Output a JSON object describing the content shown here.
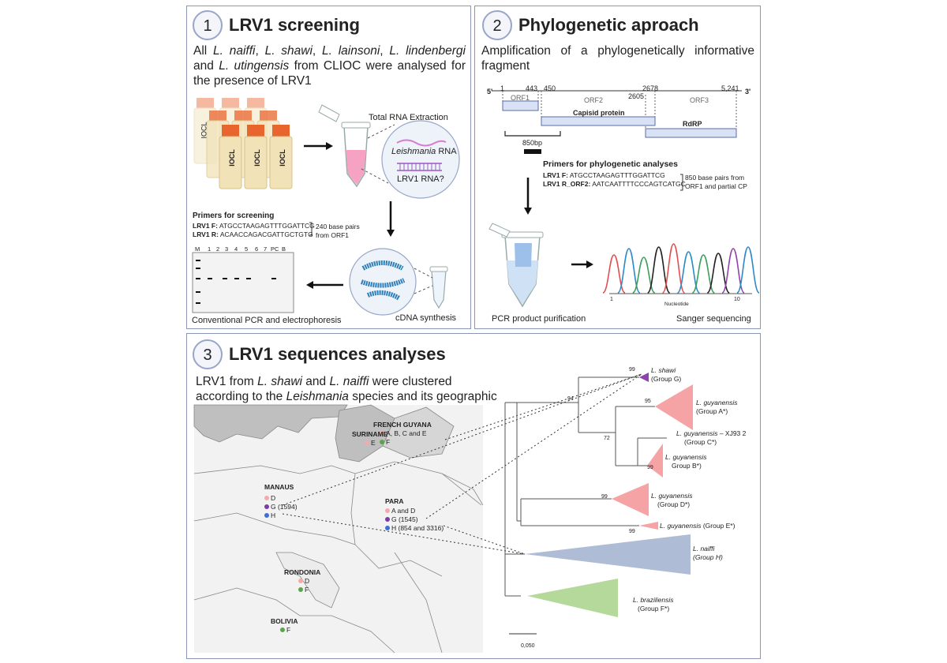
{
  "panel1": {
    "number": "1",
    "title": "LRV1 screening",
    "desc_parts": [
      "All ",
      "L. naiffi",
      ", ",
      "L. shawi",
      ", ",
      "L. lainsoni",
      ", ",
      "L. lindenbergi",
      " and ",
      "L. utingensis",
      " from CLIOC were analysed for the presence of LRV1"
    ],
    "tube_label": "IOCL",
    "rna_extraction": "Total RNA Extraction",
    "leish_rna_italic": "Leishmania",
    "leish_rna_rest": " RNA",
    "lrv1_rna": "LRV1 RNA?",
    "primers_title": "Primers for screening",
    "primer_f_label": "LRV1 F:",
    "primer_f_seq": "ATGCCTAAGAGTTTGGATTCG",
    "primer_r_label": "LRV1 R:",
    "primer_r_seq": "ACAACCAGACGATTGCTGTG",
    "primer_note_1": "240 base pairs",
    "primer_note_2": "from ORF1",
    "gel_lanes": [
      "M",
      "1",
      "2",
      "3",
      "4",
      "5",
      "6",
      "7",
      "PC",
      "B"
    ],
    "gel_label": "Conventional PCR and electrophoresis",
    "cdna_label": "cDNA synthesis"
  },
  "panel2": {
    "number": "2",
    "title": "Phylogenetic aproach",
    "desc": "Amplification of a phylogenetically informative fragment",
    "genome": {
      "five_prime": "5'",
      "three_prime": "3'",
      "positions": [
        "1",
        "443",
        "450",
        "2605",
        "2678",
        "5,241"
      ],
      "orf1": "ORF1",
      "orf2": "ORF2",
      "orf3": "ORF3",
      "capsid": "Capisid protein",
      "rdrp": "RdRP",
      "amplicon": "850bp"
    },
    "primers_title": "Primers for phylogenetic analyses",
    "primer_f_label": "LRV1 F:",
    "primer_f_seq": "ATGCCTAAGAGTTTGGATTCG",
    "primer_r_label": "LRV1 R_ORF2:",
    "primer_r_seq": "AATCAATTTTCCCAGTCATGC",
    "primer_note_1": "850 base pairs from",
    "primer_note_2": "ORF1 and partial CP",
    "purif_label": "PCR product purification",
    "seq_label": "Sanger sequencing",
    "chrom_axis_label": "Nucleotide",
    "chrom_tick_start": "1",
    "chrom_tick_end": "10",
    "peak_colors": [
      "#e05050",
      "#2c8ac9",
      "#3aa05a",
      "#222222",
      "#e05050",
      "#2c8ac9",
      "#3aa05a",
      "#222222",
      "#8e44ad",
      "#2c8ac9"
    ]
  },
  "panel3": {
    "number": "3",
    "title": "LRV1 sequences analyses",
    "desc_parts": [
      "LRV1 from ",
      "L. shawi",
      " and ",
      "L. naiffi",
      " were clustered according to the ",
      "Leishmania",
      " species and its geographic origin"
    ],
    "map": {
      "french_guyana": {
        "name": "FRENCH GUYANA",
        "items": [
          {
            "color": "#f4a9ad",
            "text": "A, B, C and E"
          },
          {
            "color": "#5aa54a",
            "text": "F"
          }
        ]
      },
      "suriname": {
        "name": "SURINAME",
        "items": [
          {
            "color": "#f4a9ad",
            "text": "E"
          }
        ]
      },
      "manaus": {
        "name": "MANAUS",
        "items": [
          {
            "color": "#f4a9ad",
            "text": "D"
          },
          {
            "color": "#7a3ea0",
            "text": "G (1594)"
          },
          {
            "color": "#3f6fd0",
            "text": "H"
          }
        ]
      },
      "para": {
        "name": "PARA",
        "items": [
          {
            "color": "#f4a9ad",
            "text": "A and D"
          },
          {
            "color": "#7a3ea0",
            "text": "G (1545)"
          },
          {
            "color": "#3f6fd0",
            "text": "H (854 and 3316)"
          }
        ]
      },
      "rondonia": {
        "name": "RONDONIA",
        "items": [
          {
            "color": "#f4a9ad",
            "text": "D"
          },
          {
            "color": "#5aa54a",
            "text": "F"
          }
        ]
      },
      "bolivia": {
        "name": "BOLIVIA",
        "items": [
          {
            "color": "#5aa54a",
            "text": "F"
          }
        ]
      }
    },
    "tree": {
      "bootstraps": {
        "shawi": "99",
        "node94": "94",
        "guyA": "95",
        "node72": "72",
        "guyB": "99",
        "guyD": "99",
        "guyE": "99"
      },
      "leaves": {
        "shawi": {
          "italic": "L. shawi",
          "group": "(Group G)"
        },
        "guyA": {
          "italic": "L. guyanensis",
          "group": "(Group A*)"
        },
        "guyC_italic": "L. guyanensis",
        "guyC_rest": " – XJ93 2",
        "guyC_group": "(Group C*)",
        "guyB": {
          "italic": "L. guyanensis",
          "group": "Group B*)"
        },
        "guyD": {
          "italic": "L. guyanensis",
          "group": "(Group D*)"
        },
        "guyE_italic": "L. guyanensis",
        "guyE_rest": " (Group E*)",
        "naiffi": {
          "italic": "L. naiffi",
          "group": "(Group H)"
        },
        "brazil": {
          "italic": "L. braziliensis",
          "group": "(Group F*)"
        }
      },
      "scale": "0,050"
    }
  },
  "colors": {
    "pink": "#f6a3a6",
    "purple": "#8e44ad",
    "blue_grey": "#aebcd6",
    "green": "#b5d99a",
    "panel_border": "#8a96b3",
    "cap_orange": "#e8662e",
    "tube_body": "#f1e2b8"
  }
}
